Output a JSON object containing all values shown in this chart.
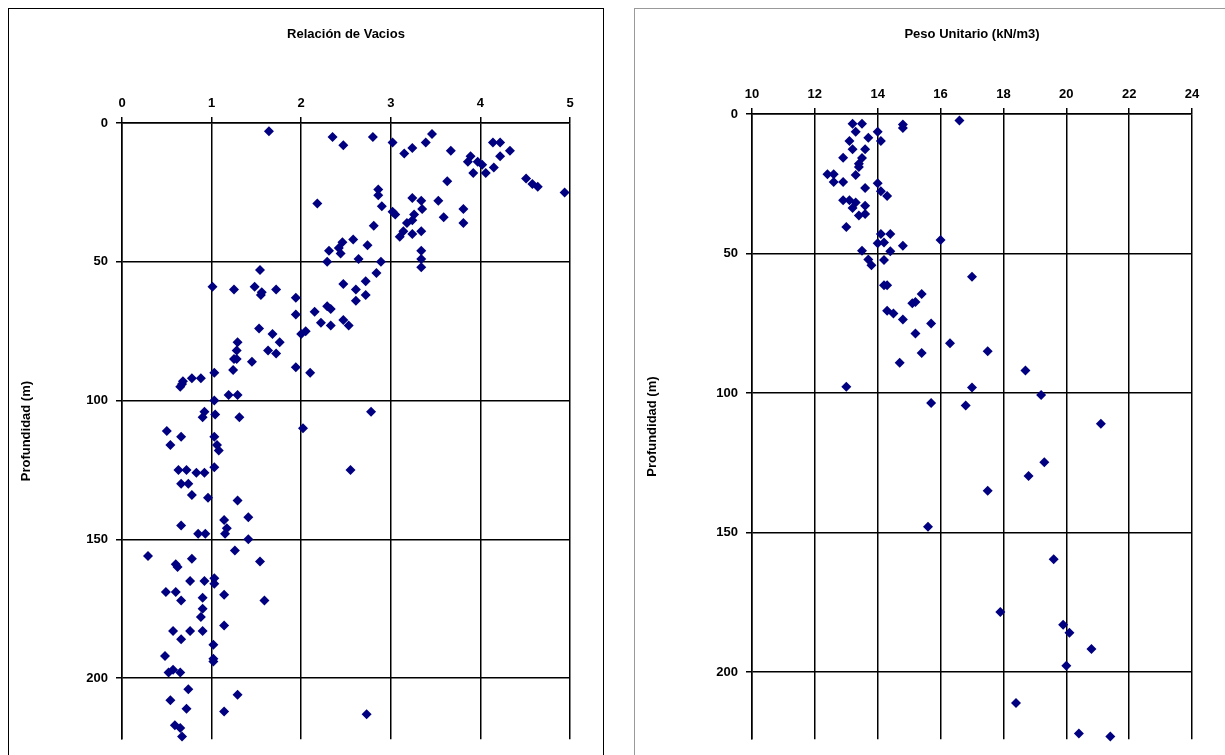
{
  "chart_data": [
    {
      "type": "scatter",
      "xlabel": "Relación de Vacios",
      "ylabel": "Profundidad (m)",
      "color": "#000080",
      "marker": "diamond",
      "grid": true,
      "xlim": [
        0,
        5
      ],
      "xticks": [
        0,
        1,
        2,
        3,
        4,
        5
      ],
      "ylim": [
        222,
        0
      ],
      "yticks": [
        0,
        50,
        100,
        150,
        200
      ],
      "x": [
        1.64,
        2.35,
        2.47,
        2.8,
        3.02,
        3.46,
        3.39,
        3.24,
        3.15,
        3.67,
        3.89,
        3.86,
        3.97,
        4.02,
        3.92,
        4.06,
        4.15,
        4.14,
        4.22,
        4.33,
        4.22,
        4.51,
        4.58,
        4.64,
        4.94,
        3.63,
        2.86,
        2.86,
        2.18,
        2.9,
        3.02,
        3.05,
        3.24,
        3.34,
        3.53,
        3.35,
        3.81,
        3.26,
        3.59,
        3.81,
        3.24,
        3.18,
        3.34,
        3.14,
        3.24,
        3.1,
        2.81,
        2.58,
        2.46,
        2.42,
        2.31,
        2.44,
        2.74,
        2.64,
        2.29,
        2.89,
        3.34,
        3.34,
        3.34,
        1.54,
        1.01,
        1.25,
        1.48,
        1.56,
        1.72,
        2.61,
        2.47,
        2.72,
        2.84,
        1.55,
        1.94,
        2.29,
        2.33,
        2.61,
        2.72,
        2.15,
        1.94,
        2.22,
        2.33,
        2.47,
        2.53,
        1.53,
        1.68,
        1.76,
        2.0,
        2.05,
        1.29,
        1.28,
        1.63,
        1.72,
        1.25,
        1.28,
        1.45,
        1.24,
        1.94,
        2.1,
        1.03,
        0.88,
        0.78,
        0.68,
        0.65,
        0.67,
        1.03,
        1.19,
        1.29,
        0.92,
        0.9,
        1.04,
        1.31,
        2.78,
        2.02,
        0.5,
        0.66,
        0.54,
        1.03,
        1.06,
        1.08,
        2.55,
        0.63,
        0.72,
        0.83,
        0.92,
        1.03,
        0.66,
        0.74,
        0.78,
        0.96,
        1.29,
        1.41,
        1.14,
        0.66,
        0.85,
        0.93,
        1.15,
        1.17,
        1.41,
        1.26,
        0.29,
        0.6,
        0.62,
        0.78,
        1.54,
        0.76,
        0.92,
        1.03,
        1.03,
        0.49,
        0.6,
        0.66,
        0.9,
        1.14,
        1.59,
        0.9,
        0.88,
        0.57,
        0.76,
        0.9,
        0.66,
        1.14,
        1.02,
        1.02,
        1.02,
        0.48,
        0.52,
        0.57,
        0.65,
        0.74,
        1.29,
        0.54,
        0.72,
        1.14,
        2.73,
        0.59,
        0.65,
        0.67
      ],
      "values": [
        3,
        5,
        8,
        5,
        7,
        4,
        7,
        9,
        11,
        10,
        12,
        14,
        14,
        15,
        18,
        18,
        16,
        7,
        7,
        10,
        12,
        20,
        22,
        23,
        25,
        21,
        24,
        26,
        29,
        30,
        32,
        33,
        27,
        28,
        28,
        31,
        31,
        33,
        34,
        36,
        35,
        36,
        39,
        39,
        40,
        41,
        37,
        42,
        43,
        45,
        46,
        47,
        44,
        49,
        50,
        50,
        46,
        49,
        52,
        53,
        59,
        60,
        59,
        61,
        60,
        60,
        58,
        57,
        54,
        62,
        63,
        66,
        67,
        64,
        62,
        68,
        69,
        72,
        73,
        71,
        73,
        74,
        76,
        79,
        76,
        75,
        79,
        82,
        82,
        83,
        85,
        85,
        86,
        89,
        88,
        90,
        90,
        92,
        92,
        93,
        95,
        94,
        100,
        98,
        98,
        104,
        106,
        105,
        106,
        104,
        110,
        111,
        113,
        116,
        113,
        116,
        118,
        125,
        125,
        125,
        126,
        126,
        124,
        130,
        130,
        134,
        135,
        136,
        142,
        143,
        145,
        148,
        148,
        148,
        146,
        150,
        154,
        156,
        159,
        160,
        157,
        158,
        165,
        165,
        164,
        166,
        169,
        169,
        172,
        171,
        170,
        172,
        175,
        178,
        183,
        183,
        183,
        186,
        181,
        188,
        193,
        194,
        192,
        198,
        197,
        198,
        204,
        206,
        208,
        211,
        212,
        213,
        217,
        218,
        221
      ]
    },
    {
      "type": "scatter",
      "xlabel": "Peso Unitario (kN/m3)",
      "ylabel": "Profundidad (m)",
      "color": "#000080",
      "marker": "diamond",
      "grid": true,
      "xlim": [
        10,
        24
      ],
      "xticks": [
        10,
        12,
        14,
        16,
        18,
        20,
        22,
        24
      ],
      "ylim": [
        224,
        0
      ],
      "yticks": [
        0,
        50,
        100,
        150,
        200
      ],
      "x": [
        13.2,
        13.5,
        13.3,
        14.0,
        14.8,
        14.8,
        16.6,
        13.7,
        14.1,
        13.1,
        13.2,
        13.6,
        12.9,
        13.5,
        13.4,
        13.4,
        12.4,
        12.6,
        12.6,
        12.9,
        13.3,
        13.6,
        14.0,
        14.1,
        14.3,
        12.9,
        13.1,
        13.3,
        13.6,
        13.2,
        13.4,
        13.6,
        13.0,
        14.1,
        14.4,
        14.0,
        14.2,
        14.8,
        16.0,
        13.5,
        14.4,
        13.7,
        14.2,
        13.8,
        17.0,
        14.2,
        14.3,
        15.4,
        15.1,
        15.2,
        14.3,
        14.5,
        14.8,
        15.7,
        15.2,
        16.3,
        15.4,
        17.5,
        14.7,
        18.7,
        13.0,
        17.0,
        19.2,
        15.7,
        16.8,
        21.1,
        19.3,
        18.8,
        17.5,
        15.6,
        19.6,
        17.9,
        19.9,
        20.1,
        20.8,
        20.0,
        18.4,
        20.4,
        21.4
      ],
      "values": [
        3.5,
        3.5,
        6.4,
        6.4,
        3.8,
        5,
        2.3,
        8.5,
        9.7,
        9.7,
        12.6,
        12.6,
        15.7,
        15.8,
        17.8,
        19,
        21.6,
        21.6,
        24.4,
        24.4,
        21.9,
        26.5,
        24.8,
        27.7,
        29.4,
        30.9,
        30.9,
        31.7,
        32.9,
        33.7,
        36.4,
        35.8,
        40.5,
        43,
        43,
        46.3,
        46,
        47.2,
        45.1,
        49,
        49.2,
        52.1,
        52.3,
        54.2,
        58.3,
        61.4,
        61.4,
        64.5,
        67.8,
        67.4,
        70.5,
        71.5,
        73.6,
        75.1,
        78.6,
        82.1,
        85.6,
        85,
        89.1,
        91.9,
        97.7,
        98,
        100.7,
        103.5,
        104.4,
        111,
        124.8,
        129.7,
        135,
        147.9,
        159.5,
        178.4,
        183,
        185.9,
        191.7,
        197.7,
        211,
        222,
        223
      ]
    }
  ]
}
